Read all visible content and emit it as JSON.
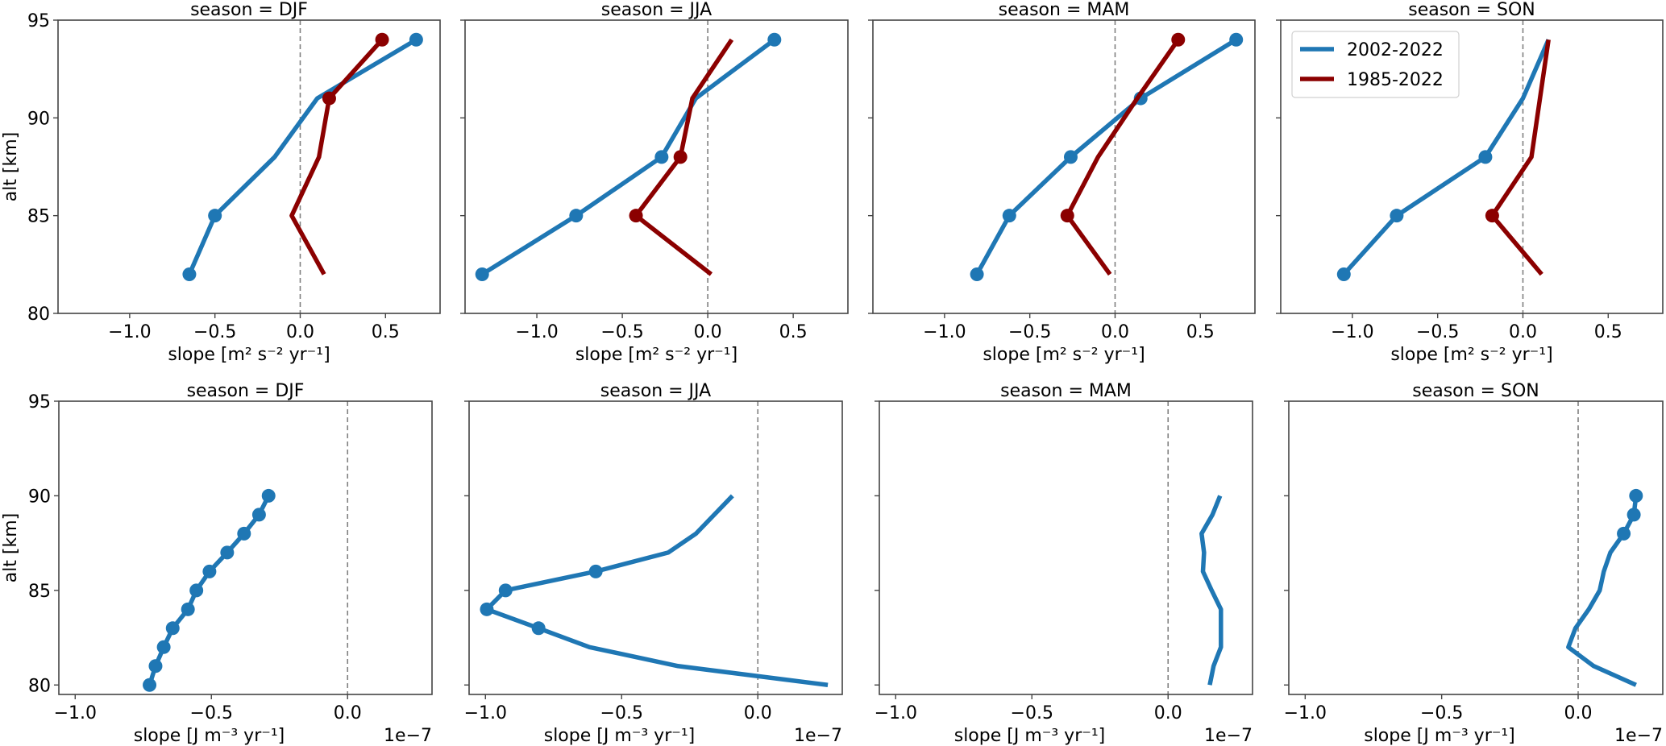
{
  "colors": {
    "series_2002_2022": "#1f77b4",
    "series_1985_2022": "#8b0000",
    "zero_line": "#808080",
    "axes": "#444444"
  },
  "chart_data": [
    {
      "type": "line",
      "row": "top",
      "title": "season = DJF",
      "xlabel": "slope [m² s⁻² yr⁻¹]",
      "ylabel": "alt [km]",
      "xlim": [
        -1.42,
        0.82
      ],
      "ylim": [
        80,
        95
      ],
      "xticks": [
        -1.0,
        -0.5,
        0.0,
        0.5
      ],
      "xtick_labels": [
        "−1.0",
        "−0.5",
        "0.0",
        "0.5"
      ],
      "yticks": [
        80,
        85,
        90,
        95
      ],
      "ytick_labels": [
        "80",
        "85",
        "90",
        "95"
      ],
      "show_yticklabels": true,
      "zero_line": true,
      "legend": null,
      "series": [
        {
          "name": "2002-2022",
          "color_key": "series_2002_2022",
          "alt": [
            82,
            85,
            88,
            91,
            94
          ],
          "slope": [
            -0.65,
            -0.5,
            -0.15,
            0.1,
            0.68
          ],
          "significant": [
            true,
            true,
            false,
            false,
            true
          ]
        },
        {
          "name": "1985-2022",
          "color_key": "series_1985_2022",
          "alt": [
            82,
            85,
            88,
            91,
            94
          ],
          "slope": [
            0.14,
            -0.05,
            0.11,
            0.17,
            0.48
          ],
          "significant": [
            false,
            false,
            false,
            true,
            true
          ]
        }
      ]
    },
    {
      "type": "line",
      "row": "top",
      "title": "season = JJA",
      "xlabel": "slope [m² s⁻² yr⁻¹]",
      "ylabel": "",
      "xlim": [
        -1.42,
        0.82
      ],
      "ylim": [
        80,
        95
      ],
      "xticks": [
        -1.0,
        -0.5,
        0.0,
        0.5
      ],
      "xtick_labels": [
        "−1.0",
        "−0.5",
        "0.0",
        "0.5"
      ],
      "yticks": [
        80,
        85,
        90,
        95
      ],
      "ytick_labels": [],
      "show_yticklabels": false,
      "zero_line": true,
      "legend": null,
      "series": [
        {
          "name": "2002-2022",
          "color_key": "series_2002_2022",
          "alt": [
            82,
            85,
            88,
            91,
            94
          ],
          "slope": [
            -1.32,
            -0.77,
            -0.27,
            -0.07,
            0.39
          ],
          "significant": [
            true,
            true,
            true,
            false,
            true
          ]
        },
        {
          "name": "1985-2022",
          "color_key": "series_1985_2022",
          "alt": [
            82,
            85,
            88,
            91,
            94
          ],
          "slope": [
            0.02,
            -0.42,
            -0.16,
            -0.09,
            0.14
          ],
          "significant": [
            false,
            true,
            true,
            false,
            false
          ]
        }
      ]
    },
    {
      "type": "line",
      "row": "top",
      "title": "season = MAM",
      "xlabel": "slope [m² s⁻² yr⁻¹]",
      "ylabel": "",
      "xlim": [
        -1.42,
        0.82
      ],
      "ylim": [
        80,
        95
      ],
      "xticks": [
        -1.0,
        -0.5,
        0.0,
        0.5
      ],
      "xtick_labels": [
        "−1.0",
        "−0.5",
        "0.0",
        "0.5"
      ],
      "yticks": [
        80,
        85,
        90,
        95
      ],
      "ytick_labels": [],
      "show_yticklabels": false,
      "zero_line": true,
      "legend": null,
      "series": [
        {
          "name": "2002-2022",
          "color_key": "series_2002_2022",
          "alt": [
            82,
            85,
            88,
            91,
            94
          ],
          "slope": [
            -0.81,
            -0.62,
            -0.26,
            0.15,
            0.71
          ],
          "significant": [
            true,
            true,
            true,
            true,
            true
          ]
        },
        {
          "name": "1985-2022",
          "color_key": "series_1985_2022",
          "alt": [
            82,
            85,
            88,
            91,
            94
          ],
          "slope": [
            -0.03,
            -0.28,
            -0.1,
            0.13,
            0.37
          ],
          "significant": [
            false,
            true,
            false,
            false,
            true
          ]
        }
      ]
    },
    {
      "type": "line",
      "row": "top",
      "title": "season = SON",
      "xlabel": "slope [m² s⁻² yr⁻¹]",
      "ylabel": "",
      "xlim": [
        -1.42,
        0.82
      ],
      "ylim": [
        80,
        95
      ],
      "xticks": [
        -1.0,
        -0.5,
        0.0,
        0.5
      ],
      "xtick_labels": [
        "−1.0",
        "−0.5",
        "0.0",
        "0.5"
      ],
      "yticks": [
        80,
        85,
        90,
        95
      ],
      "ytick_labels": [],
      "show_yticklabels": false,
      "zero_line": true,
      "legend": {
        "placement": "upper-left",
        "entries": [
          "2002-2022",
          "1985-2022"
        ]
      },
      "series": [
        {
          "name": "2002-2022",
          "color_key": "series_2002_2022",
          "alt": [
            82,
            85,
            88,
            91,
            94
          ],
          "slope": [
            -1.05,
            -0.74,
            -0.22,
            0.0,
            0.15
          ],
          "significant": [
            true,
            true,
            true,
            false,
            false
          ]
        },
        {
          "name": "1985-2022",
          "color_key": "series_1985_2022",
          "alt": [
            82,
            85,
            88,
            91,
            94
          ],
          "slope": [
            0.11,
            -0.18,
            0.05,
            0.1,
            0.15
          ],
          "significant": [
            false,
            true,
            false,
            false,
            false
          ]
        }
      ]
    },
    {
      "type": "line",
      "row": "bottom",
      "title": "season = DJF",
      "xlabel": "slope [J m⁻³ yr⁻¹]",
      "x_offset_label": "1e−7",
      "ylabel": "alt [km]",
      "xlim": [
        -1.06,
        0.31
      ],
      "ylim": [
        79.5,
        95
      ],
      "xticks": [
        -1.0,
        -0.5,
        0.0
      ],
      "xtick_labels": [
        "−1.0",
        "−0.5",
        "0.0"
      ],
      "yticks": [
        80,
        85,
        90,
        95
      ],
      "ytick_labels": [
        "80",
        "85",
        "90",
        "95"
      ],
      "show_yticklabels": true,
      "zero_line": true,
      "legend": null,
      "series": [
        {
          "name": "2002-2022",
          "color_key": "series_2002_2022",
          "alt": [
            80,
            81,
            82,
            83,
            84,
            85,
            86,
            87,
            88,
            89,
            90
          ],
          "slope": [
            -0.727,
            -0.705,
            -0.675,
            -0.642,
            -0.586,
            -0.555,
            -0.507,
            -0.442,
            -0.38,
            -0.325,
            -0.29
          ],
          "significant": [
            true,
            true,
            true,
            true,
            true,
            true,
            true,
            true,
            true,
            true,
            true
          ]
        }
      ]
    },
    {
      "type": "line",
      "row": "bottom",
      "title": "season = JJA",
      "xlabel": "slope [J m⁻³ yr⁻¹]",
      "x_offset_label": "1e−7",
      "ylabel": "",
      "xlim": [
        -1.06,
        0.31
      ],
      "ylim": [
        79.5,
        95
      ],
      "xticks": [
        -1.0,
        -0.5,
        0.0
      ],
      "xtick_labels": [
        "−1.0",
        "−0.5",
        "0.0"
      ],
      "yticks": [
        80,
        85,
        90,
        95
      ],
      "ytick_labels": [],
      "show_yticklabels": false,
      "zero_line": true,
      "legend": null,
      "series": [
        {
          "name": "2002-2022",
          "color_key": "series_2002_2022",
          "alt": [
            80,
            81,
            82,
            83,
            84,
            85,
            86,
            87,
            88,
            89,
            90
          ],
          "slope": [
            0.257,
            -0.293,
            -0.618,
            -0.805,
            -0.995,
            -0.926,
            -0.595,
            -0.329,
            -0.227,
            -0.16,
            -0.093
          ],
          "significant": [
            false,
            false,
            false,
            true,
            true,
            true,
            true,
            false,
            false,
            false,
            false
          ]
        }
      ]
    },
    {
      "type": "line",
      "row": "bottom",
      "title": "season = MAM",
      "xlabel": "slope [J m⁻³ yr⁻¹]",
      "x_offset_label": "1e−7",
      "ylabel": "",
      "xlim": [
        -1.06,
        0.31
      ],
      "ylim": [
        79.5,
        95
      ],
      "xticks": [
        -1.0,
        -0.5,
        0.0
      ],
      "xtick_labels": [
        "−1.0",
        "−0.5",
        "0.0"
      ],
      "yticks": [
        80,
        85,
        90,
        95
      ],
      "ytick_labels": [],
      "show_yticklabels": false,
      "zero_line": true,
      "legend": null,
      "series": [
        {
          "name": "2002-2022",
          "color_key": "series_2002_2022",
          "alt": [
            80,
            81,
            82,
            83,
            84,
            85,
            86,
            87,
            88,
            89,
            90
          ],
          "slope": [
            0.153,
            0.167,
            0.194,
            0.194,
            0.194,
            0.16,
            0.128,
            0.132,
            0.123,
            0.163,
            0.191
          ],
          "significant": [
            false,
            false,
            false,
            false,
            false,
            false,
            false,
            false,
            false,
            false,
            false
          ]
        }
      ]
    },
    {
      "type": "line",
      "row": "bottom",
      "title": "season = SON",
      "xlabel": "slope [J m⁻³ yr⁻¹]",
      "x_offset_label": "1e−7",
      "ylabel": "",
      "xlim": [
        -1.06,
        0.31
      ],
      "ylim": [
        79.5,
        95
      ],
      "xticks": [
        -1.0,
        -0.5,
        0.0
      ],
      "xtick_labels": [
        "−1.0",
        "−0.5",
        "0.0"
      ],
      "yticks": [
        80,
        85,
        90,
        95
      ],
      "ytick_labels": [],
      "show_yticklabels": false,
      "zero_line": true,
      "legend": null,
      "series": [
        {
          "name": "2002-2022",
          "color_key": "series_2002_2022",
          "alt": [
            80,
            81,
            82,
            83,
            84,
            85,
            86,
            87,
            88,
            89,
            90
          ],
          "slope": [
            0.212,
            0.057,
            -0.036,
            -0.01,
            0.039,
            0.079,
            0.094,
            0.118,
            0.167,
            0.204,
            0.212
          ],
          "significant": [
            false,
            false,
            false,
            false,
            false,
            false,
            false,
            false,
            true,
            true,
            true
          ]
        }
      ]
    }
  ]
}
